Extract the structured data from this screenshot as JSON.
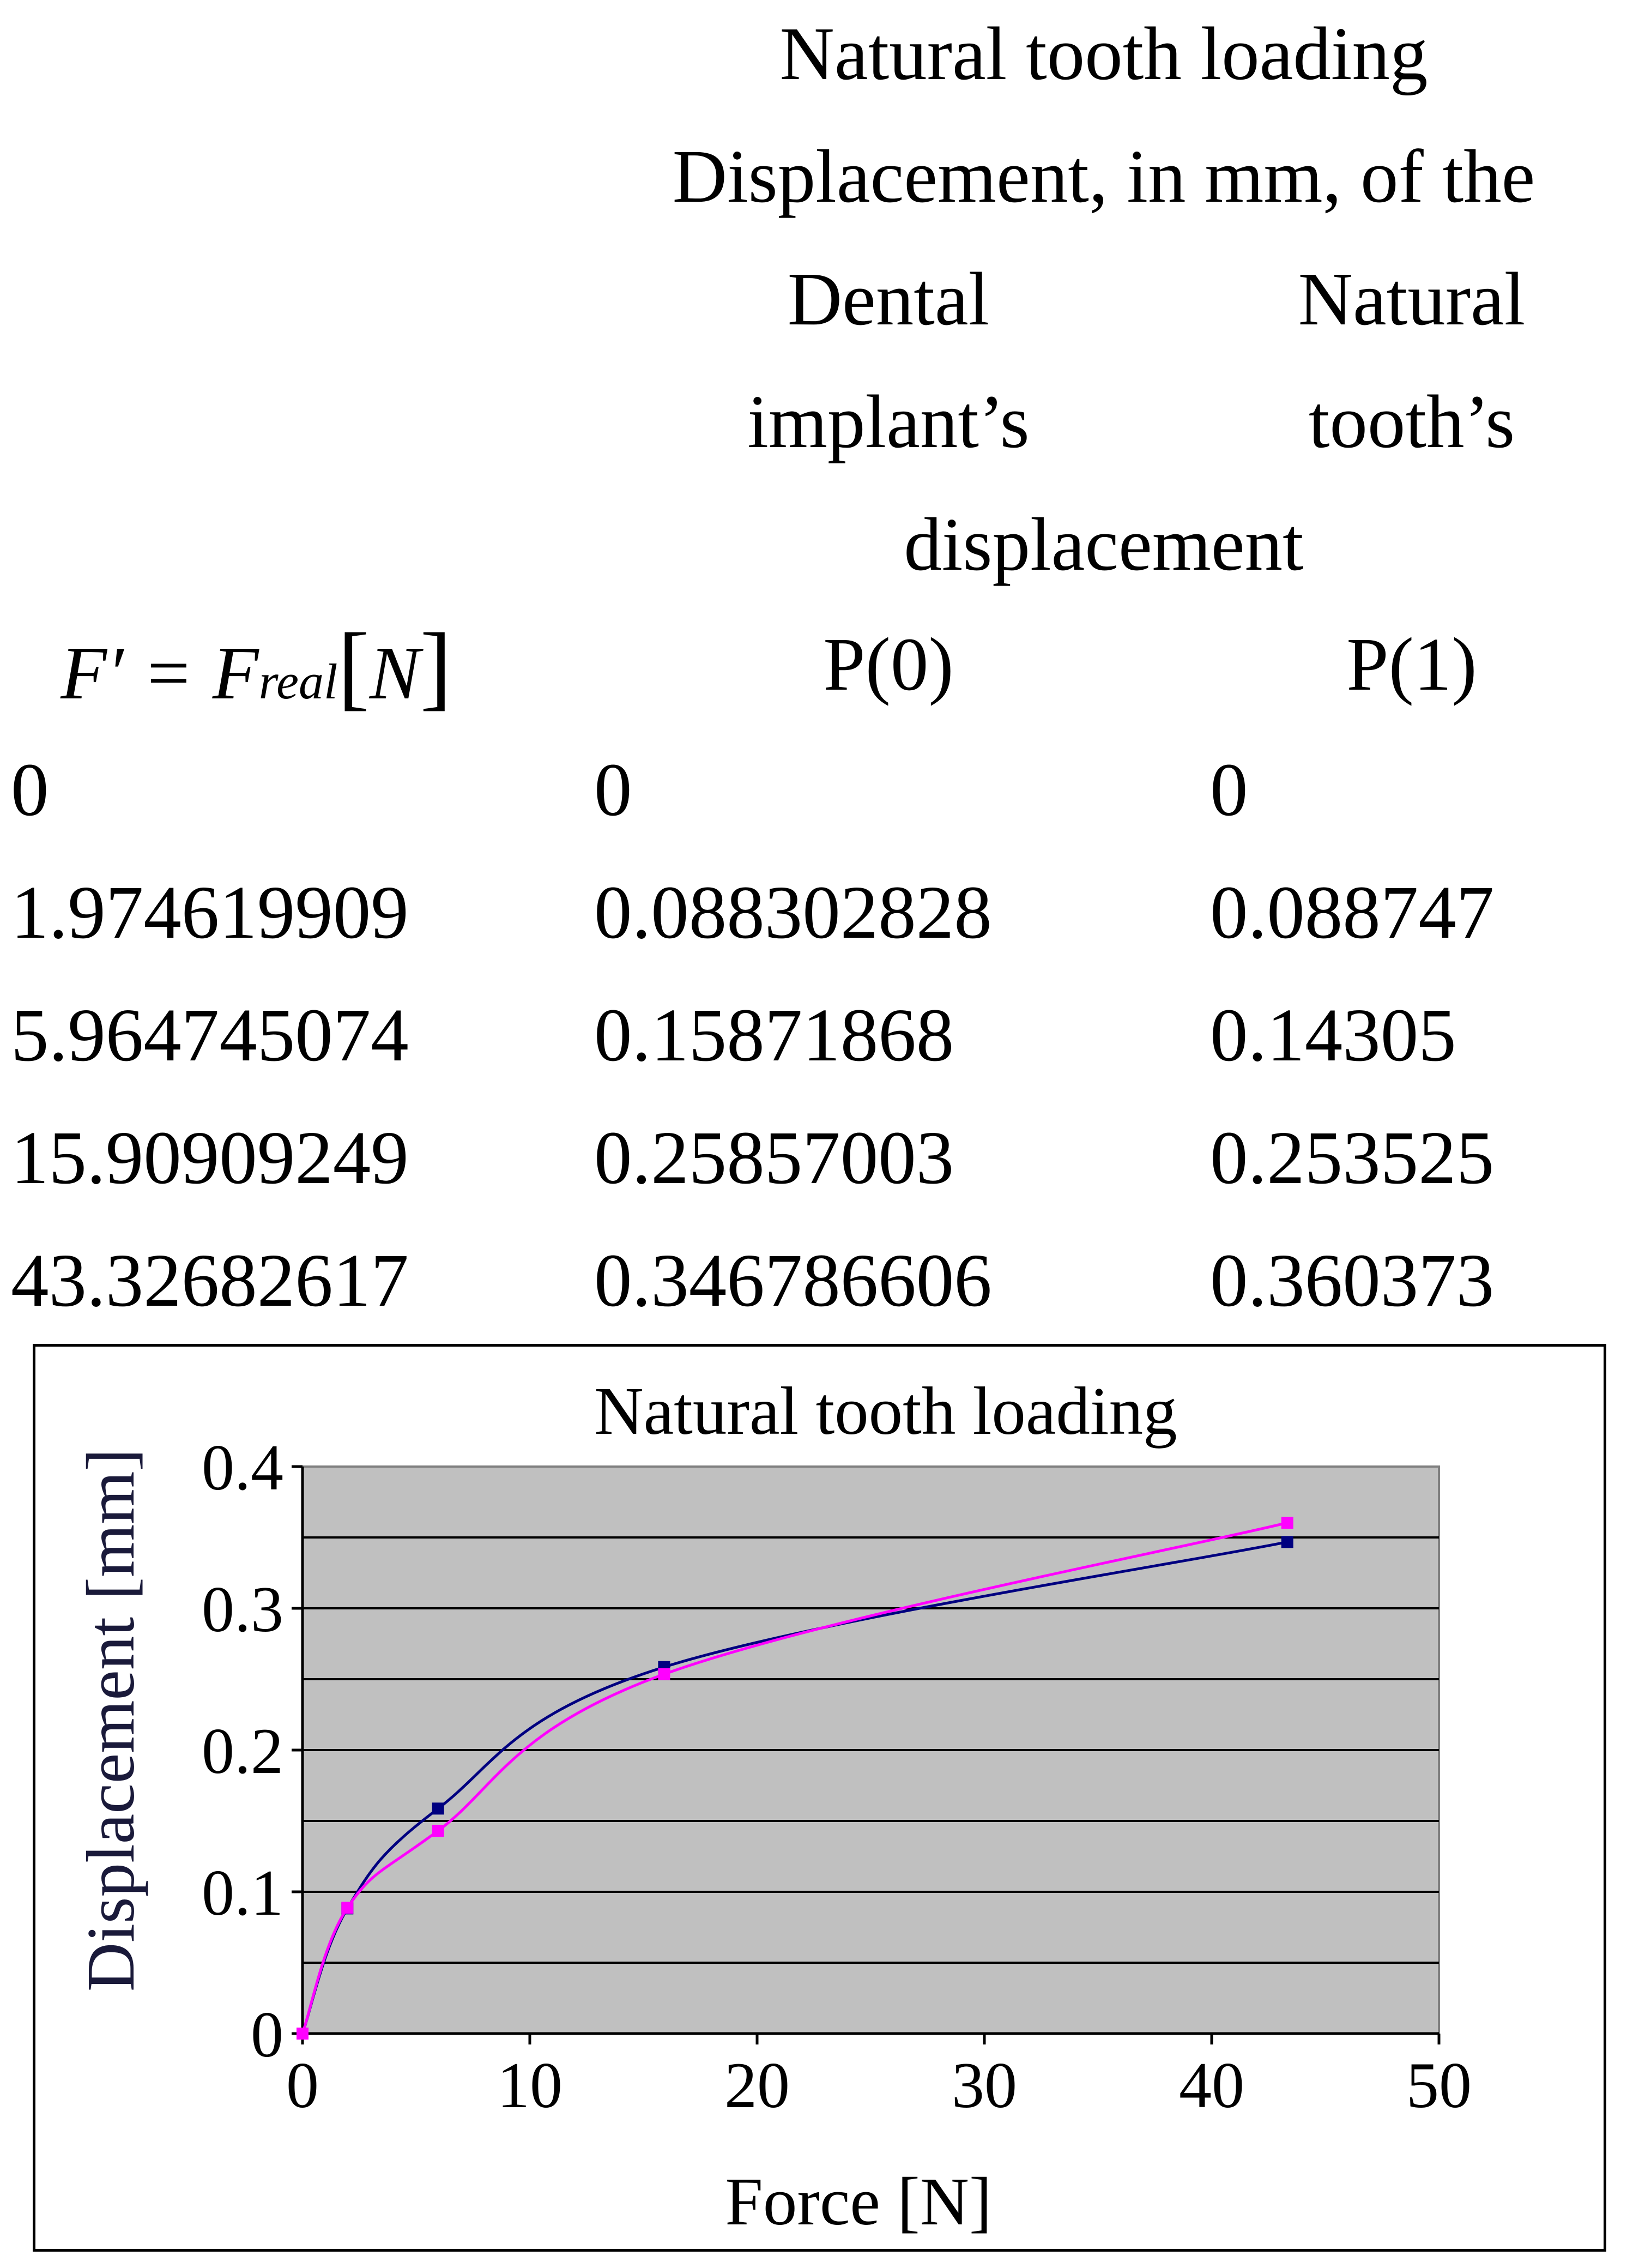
{
  "table": {
    "title": "Natural tooth loading",
    "subtitle": "Displacement, in mm, of the",
    "col1_head": [
      "Dental",
      "implant’s"
    ],
    "col2_head": [
      "Natural",
      "tooth’s"
    ],
    "shared_head": "displacement",
    "force_symbol": {
      "main": "F′ = F",
      "sub": "real",
      "unit": "N"
    },
    "col1_code": "P(0)",
    "col2_code": "P(1)",
    "rows": [
      [
        "0",
        "0",
        "0"
      ],
      [
        "1.974619909",
        "0.088302828",
        "0.088747"
      ],
      [
        "5.964745074",
        "0.15871868",
        "0.14305"
      ],
      [
        "15.90909249",
        "0.25857003",
        "0.253525"
      ],
      [
        "43.32682617",
        "0.346786606",
        "0.360373"
      ]
    ]
  },
  "chart_data": {
    "type": "line",
    "title": "Natural tooth loading",
    "xlabel": "Force [N]",
    "ylabel": "Displacement [mm]",
    "xlim": [
      0,
      50
    ],
    "ylim": [
      0,
      0.4
    ],
    "x_ticks": [
      "0",
      "10",
      "20",
      "30",
      "40",
      "50"
    ],
    "y_ticks": [
      "0",
      "0.1",
      "0.2",
      "0.3",
      "0.4"
    ],
    "grid": true,
    "legend": "none",
    "plot_background": "#c0c0c0",
    "series": [
      {
        "color": "#000080",
        "x": [
          0,
          1.974619909,
          5.964745074,
          15.90909249,
          43.32682617
        ],
        "y": [
          0,
          0.088302828,
          0.15871868,
          0.25857003,
          0.346786606
        ]
      },
      {
        "color": "#ff00ff",
        "x": [
          0,
          1.974619909,
          5.964745074,
          15.90909249,
          43.32682617
        ],
        "y": [
          0,
          0.088747,
          0.14305,
          0.253525,
          0.360373
        ]
      }
    ]
  }
}
